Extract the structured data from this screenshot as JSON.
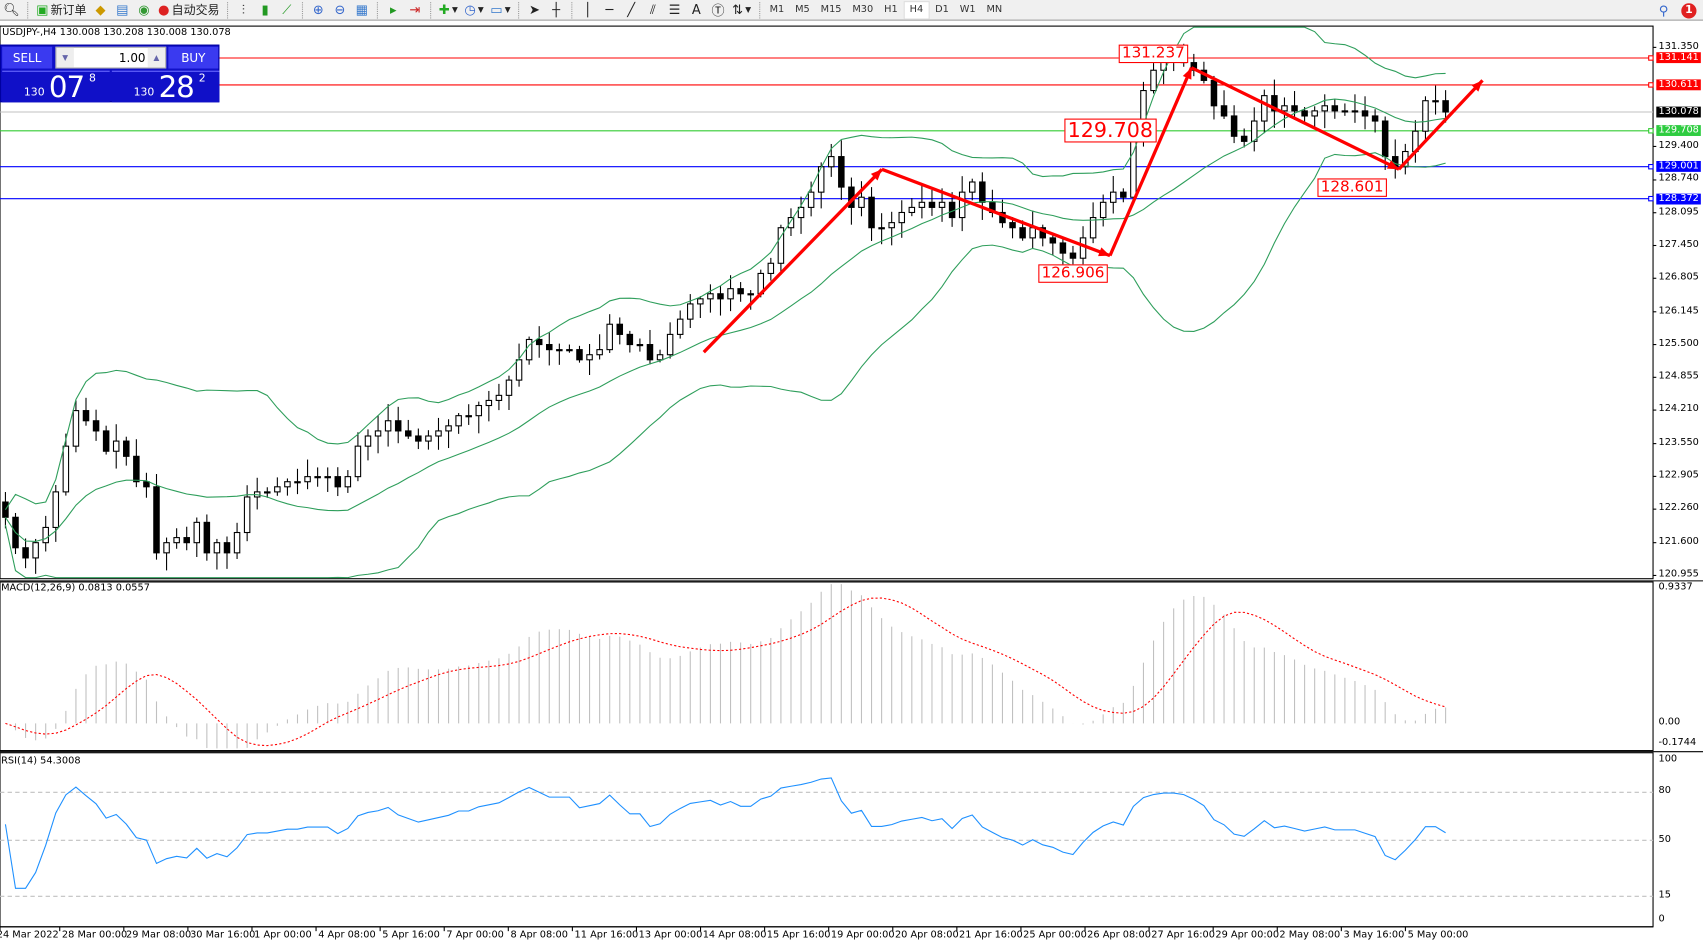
{
  "toolbar": {
    "new_order": "新订单",
    "auto_trading": "自动交易",
    "timeframes": [
      "M1",
      "M5",
      "M15",
      "M30",
      "H1",
      "H4",
      "D1",
      "W1",
      "MN"
    ],
    "active_timeframe": "H4",
    "notification_count": "1"
  },
  "chart": {
    "symbol_info": "USDJPY-,H4  130.008 130.208 130.008 130.078",
    "price_ticks": [
      "131.350",
      "129.400",
      "128.740",
      "128.095",
      "127.450",
      "126.805",
      "126.145",
      "125.500",
      "124.855",
      "124.210",
      "123.550",
      "122.905",
      "122.260",
      "121.600",
      "120.955"
    ],
    "price_tick_values": [
      131.35,
      129.4,
      128.74,
      128.095,
      127.45,
      126.805,
      126.145,
      125.5,
      124.855,
      124.21,
      123.55,
      122.905,
      122.26,
      121.6,
      120.955
    ],
    "levels": [
      {
        "label": "131.141",
        "value": 131.141,
        "color": "#ff0000"
      },
      {
        "label": "130.611",
        "value": 130.611,
        "color": "#ff0000"
      },
      {
        "label": "130.078",
        "value": 130.078,
        "color": "#000000",
        "line": "#c0c0c0"
      },
      {
        "label": "129.708",
        "value": 129.708,
        "color": "#2ecc40",
        "line": "#33cc33"
      },
      {
        "label": "129.001",
        "value": 129.001,
        "color": "#0000ff"
      },
      {
        "label": "128.372",
        "value": 128.372,
        "color": "#0000ff"
      }
    ],
    "annotations": [
      "131.237",
      "129.708",
      "126.906",
      "128.601"
    ],
    "zigzag": [
      125.35,
      128.95,
      127.25,
      130.95,
      128.95,
      130.7
    ],
    "closes": [
      122.1,
      121.5,
      121.3,
      121.6,
      121.9,
      122.6,
      123.5,
      124.2,
      124.0,
      123.8,
      123.4,
      123.6,
      123.3,
      122.8,
      122.7,
      121.4,
      121.6,
      121.7,
      121.6,
      122.0,
      121.4,
      121.6,
      121.4,
      121.8,
      122.5,
      122.6,
      122.6,
      122.7,
      122.8,
      122.8,
      122.9,
      122.9,
      122.9,
      122.7,
      122.9,
      123.5,
      123.7,
      123.8,
      124.0,
      123.8,
      123.7,
      123.6,
      123.7,
      123.8,
      123.9,
      124.1,
      124.1,
      124.3,
      124.4,
      124.5,
      124.8,
      125.2,
      125.6,
      125.5,
      125.4,
      125.4,
      125.4,
      125.2,
      125.3,
      125.4,
      125.9,
      125.7,
      125.5,
      125.5,
      125.2,
      125.3,
      125.7,
      126.0,
      126.3,
      126.4,
      126.5,
      126.4,
      126.6,
      126.5,
      126.5,
      126.9,
      127.1,
      127.8,
      128.0,
      128.2,
      128.5,
      129.0,
      129.2,
      128.6,
      128.2,
      128.4,
      127.8,
      127.8,
      127.9,
      128.1,
      128.2,
      128.3,
      128.2,
      128.3,
      128.0,
      128.5,
      128.7,
      128.3,
      128.1,
      127.9,
      127.8,
      127.6,
      127.8,
      127.6,
      127.5,
      127.3,
      127.2,
      127.6,
      128.0,
      128.3,
      128.5,
      128.4,
      129.6,
      130.5,
      130.9,
      131.1,
      131.1,
      131.05,
      130.9,
      130.7,
      130.2,
      130.0,
      129.6,
      129.5,
      129.9,
      130.4,
      130.1,
      130.2,
      130.1,
      130.0,
      130.1,
      130.2,
      130.1,
      130.1,
      130.1,
      130.0,
      129.9,
      129.2,
      129.0,
      129.3,
      129.7,
      130.3,
      130.3,
      130.078
    ],
    "bands_color": "#2e9e5b",
    "bull_color": "#ffffff",
    "bear_color": "#000000"
  },
  "trade_panel": {
    "sell_label": "SELL",
    "buy_label": "BUY",
    "lots": "1.00",
    "sell_price": {
      "prefix": "130",
      "big": "07",
      "sup": "8"
    },
    "buy_price": {
      "prefix": "130",
      "big": "28",
      "sup": "2"
    },
    "color": "#1010c8"
  },
  "macd": {
    "label": "MACD(12,26,9) 0.0813 0.0557",
    "axis": [
      "0.9337",
      "0.00",
      "-0.1744"
    ],
    "hist_color": "#c0c0c0",
    "signal_color": "#ff0000"
  },
  "rsi": {
    "label": "RSI(14) 54.3008",
    "axis": [
      "100",
      "80",
      "50",
      "15",
      "0"
    ],
    "levels": [
      80,
      50,
      15
    ],
    "color": "#1e90ff"
  },
  "time_axis": [
    "24 Mar 2022",
    "28 Mar 00:00",
    "29 Mar 08:00",
    "30 Mar 16:00",
    "1 Apr 00:00",
    "4 Apr 08:00",
    "5 Apr 16:00",
    "7 Apr 00:00",
    "8 Apr 08:00",
    "11 Apr 16:00",
    "13 Apr 00:00",
    "14 Apr 08:00",
    "15 Apr 16:00",
    "19 Apr 00:00",
    "20 Apr 08:00",
    "21 Apr 16:00",
    "25 Apr 00:00",
    "26 Apr 08:00",
    "27 Apr 16:00",
    "29 Apr 00:00",
    "2 May 08:00",
    "3 May 16:00",
    "5 May 00:00"
  ]
}
